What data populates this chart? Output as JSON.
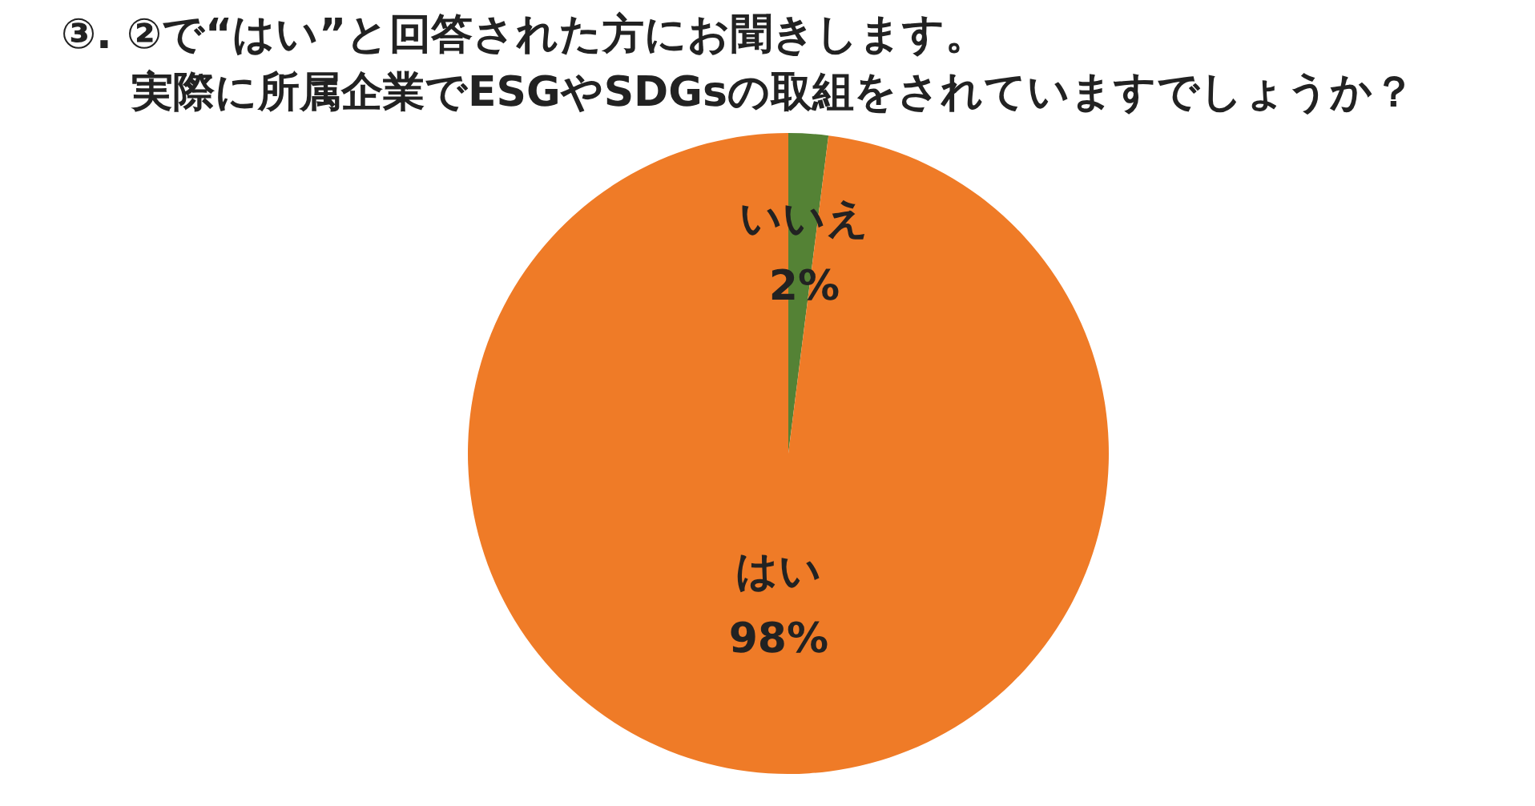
{
  "chart_data": {
    "type": "pie",
    "title": "③. ②で“はい”と回答された方にお聞きします。",
    "subtitle": "実際に所属企業でESGやSDGsの取組をされていますでしょうか？",
    "categories": [
      "いいえ",
      "はい"
    ],
    "values": [
      2,
      98
    ],
    "colors": [
      "#548235",
      "#ef7b27"
    ],
    "value_labels": [
      "2%",
      "98%"
    ],
    "legend": false
  }
}
